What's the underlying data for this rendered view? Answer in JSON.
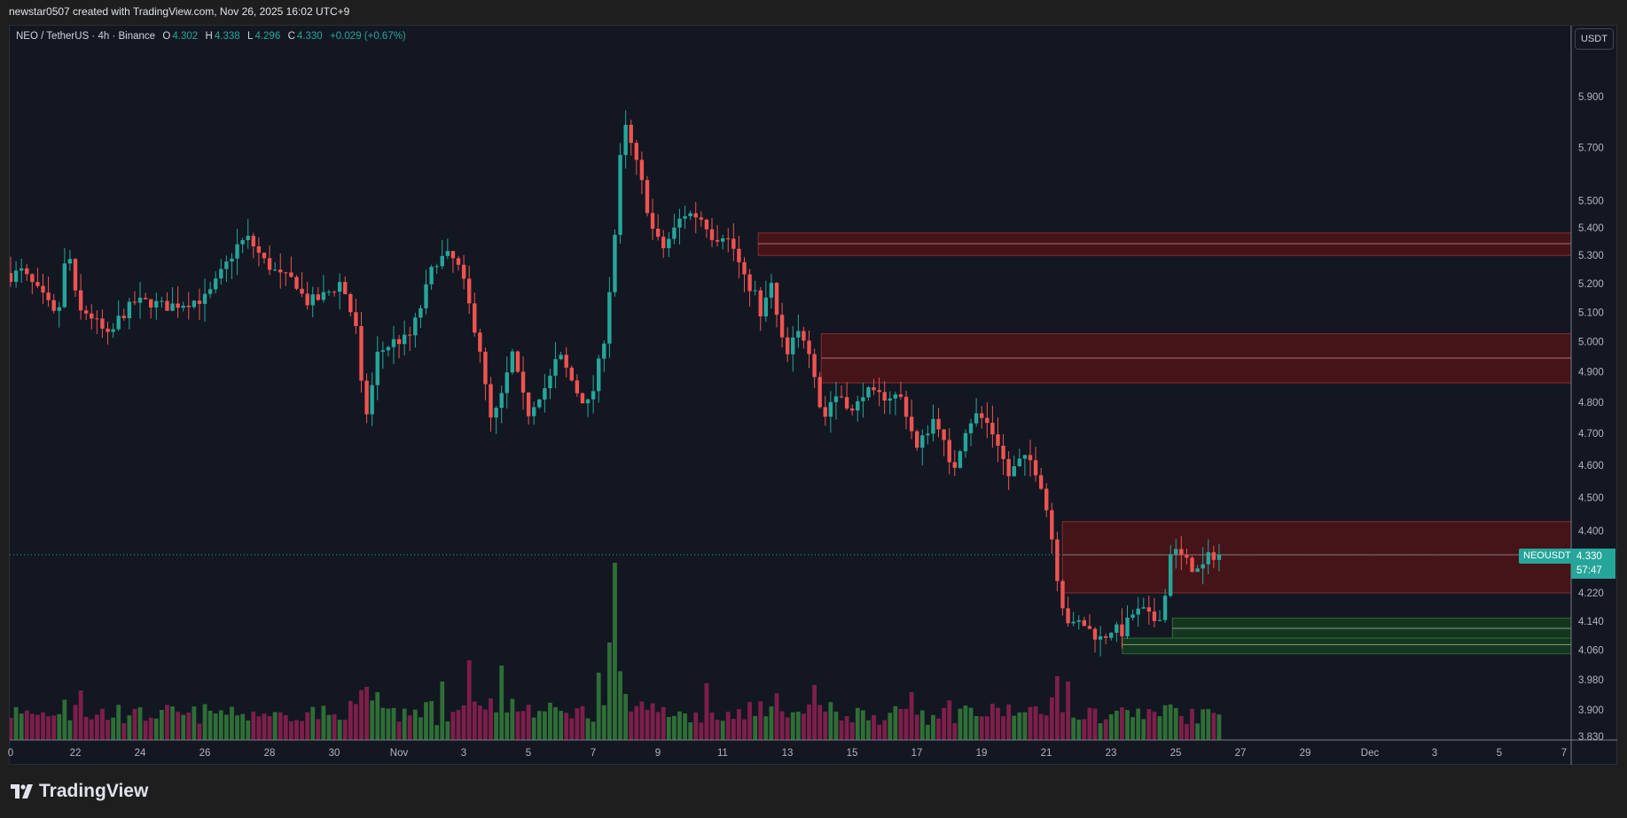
{
  "header": {
    "credit": "newstar0507 created with TradingView.com, Nov 26, 2025 16:02 UTC+9"
  },
  "legend": {
    "symbol": "NEO / TetherUS · 4h · Binance",
    "o_label": "O",
    "o": "4.302",
    "h_label": "H",
    "h": "4.338",
    "l_label": "L",
    "l": "4.296",
    "c_label": "C",
    "c": "4.330",
    "change": "+0.029 (+0.67%)"
  },
  "currency_button": "USDT",
  "price_tag": {
    "symbol": "NEOUSDT",
    "price": "4.330",
    "countdown": "57:47"
  },
  "footer": {
    "brand": "TradingView"
  },
  "colors": {
    "up": "#26a69a",
    "down": "#ef5350",
    "vol_up": "#2f6e37",
    "vol_down": "#7d1f4a",
    "zone_red": "#4a1418",
    "zone_green": "#163a1e",
    "bg": "#131722"
  },
  "chart_data": {
    "type": "candlestick",
    "title": "NEO / TetherUS · 4h · Binance",
    "scale": "log",
    "ylim": [
      3.83,
      5.9
    ],
    "y_ticks": [
      "5.900",
      "5.700",
      "5.500",
      "5.400",
      "5.300",
      "5.200",
      "5.100",
      "5.000",
      "4.900",
      "4.800",
      "4.700",
      "4.600",
      "4.500",
      "4.400",
      "4.220",
      "4.140",
      "4.060",
      "3.980",
      "3.900",
      "3.830"
    ],
    "x_ticks": [
      {
        "label": "0",
        "day": 0
      },
      {
        "label": "22",
        "day": 2
      },
      {
        "label": "24",
        "day": 4
      },
      {
        "label": "26",
        "day": 6
      },
      {
        "label": "28",
        "day": 8
      },
      {
        "label": "30",
        "day": 10
      },
      {
        "label": "Nov",
        "day": 12
      },
      {
        "label": "3",
        "day": 14
      },
      {
        "label": "5",
        "day": 16
      },
      {
        "label": "7",
        "day": 18
      },
      {
        "label": "9",
        "day": 20
      },
      {
        "label": "11",
        "day": 22
      },
      {
        "label": "13",
        "day": 24
      },
      {
        "label": "15",
        "day": 26
      },
      {
        "label": "17",
        "day": 28
      },
      {
        "label": "19",
        "day": 30
      },
      {
        "label": "21",
        "day": 32
      },
      {
        "label": "23",
        "day": 34
      },
      {
        "label": "25",
        "day": 36
      },
      {
        "label": "27",
        "day": 38
      },
      {
        "label": "29",
        "day": 40
      },
      {
        "label": "Dec",
        "day": 42
      },
      {
        "label": "3",
        "day": 44
      },
      {
        "label": "5",
        "day": 46
      },
      {
        "label": "7",
        "day": 48
      }
    ],
    "x_unit": "days since Oct 20 2025",
    "candle_interval_days": 0.1667,
    "last_price": 4.33,
    "price_path": [
      [
        0,
        5.227
      ],
      [
        0.32,
        5.245
      ],
      [
        1.12,
        5.135
      ],
      [
        1.44,
        5.07
      ],
      [
        1.76,
        5.34
      ],
      [
        2.08,
        5.1
      ],
      [
        2.4,
        5.1
      ],
      [
        3.04,
        5.01
      ],
      [
        3.35,
        5.08
      ],
      [
        3.83,
        5.135
      ],
      [
        4.31,
        5.135
      ],
      [
        4.79,
        5.12
      ],
      [
        5.43,
        5.135
      ],
      [
        6.07,
        5.15
      ],
      [
        6.55,
        5.245
      ],
      [
        7.03,
        5.34
      ],
      [
        7.35,
        5.36
      ],
      [
        7.83,
        5.28
      ],
      [
        8.31,
        5.227
      ],
      [
        8.79,
        5.21
      ],
      [
        9.11,
        5.135
      ],
      [
        9.58,
        5.15
      ],
      [
        10.06,
        5.19
      ],
      [
        10.22,
        5.21
      ],
      [
        10.7,
        5.03
      ],
      [
        10.86,
        4.82
      ],
      [
        11.02,
        4.76
      ],
      [
        11.34,
        4.96
      ],
      [
        11.82,
        5.0
      ],
      [
        12.3,
        5.01
      ],
      [
        12.62,
        5.1
      ],
      [
        13.1,
        5.28
      ],
      [
        13.58,
        5.3
      ],
      [
        13.9,
        5.245
      ],
      [
        14.22,
        5.1
      ],
      [
        14.54,
        4.96
      ],
      [
        14.7,
        4.82
      ],
      [
        14.86,
        4.73
      ],
      [
        15.18,
        4.82
      ],
      [
        15.5,
        4.96
      ],
      [
        15.65,
        4.89
      ],
      [
        15.97,
        4.76
      ],
      [
        16.29,
        4.82
      ],
      [
        16.61,
        4.86
      ],
      [
        16.93,
        4.96
      ],
      [
        17.25,
        4.89
      ],
      [
        17.57,
        4.82
      ],
      [
        17.89,
        4.79
      ],
      [
        18.05,
        4.86
      ],
      [
        18.37,
        5.03
      ],
      [
        18.53,
        5.21
      ],
      [
        18.75,
        5.47
      ],
      [
        18.91,
        5.81
      ],
      [
        19.17,
        5.71
      ],
      [
        19.49,
        5.57
      ],
      [
        19.81,
        5.4
      ],
      [
        20.13,
        5.32
      ],
      [
        20.45,
        5.38
      ],
      [
        20.77,
        5.45
      ],
      [
        21.09,
        5.45
      ],
      [
        21.41,
        5.43
      ],
      [
        21.73,
        5.36
      ],
      [
        22.04,
        5.38
      ],
      [
        22.36,
        5.32
      ],
      [
        22.68,
        5.21
      ],
      [
        23.0,
        5.17
      ],
      [
        23.16,
        5.07
      ],
      [
        23.48,
        5.21
      ],
      [
        23.64,
        5.1
      ],
      [
        23.96,
        4.94
      ],
      [
        24.28,
        5.03
      ],
      [
        24.6,
        5.01
      ],
      [
        24.92,
        4.86
      ],
      [
        25.08,
        4.73
      ],
      [
        25.4,
        4.82
      ],
      [
        25.72,
        4.82
      ],
      [
        26.04,
        4.76
      ],
      [
        26.36,
        4.84
      ],
      [
        26.68,
        4.82
      ],
      [
        27.16,
        4.82
      ],
      [
        27.48,
        4.82
      ],
      [
        27.8,
        4.73
      ],
      [
        27.96,
        4.64
      ],
      [
        28.27,
        4.7
      ],
      [
        28.59,
        4.76
      ],
      [
        28.91,
        4.64
      ],
      [
        29.07,
        4.565
      ],
      [
        29.55,
        4.73
      ],
      [
        29.87,
        4.76
      ],
      [
        30.19,
        4.73
      ],
      [
        30.51,
        4.67
      ],
      [
        30.83,
        4.565
      ],
      [
        31.15,
        4.61
      ],
      [
        31.47,
        4.62
      ],
      [
        31.79,
        4.565
      ],
      [
        32.11,
        4.42
      ],
      [
        32.43,
        4.21
      ],
      [
        32.75,
        4.12
      ],
      [
        33.07,
        4.14
      ],
      [
        33.39,
        4.11
      ],
      [
        33.71,
        4.09
      ],
      [
        34.03,
        4.12
      ],
      [
        34.35,
        4.11
      ],
      [
        34.66,
        4.16
      ],
      [
        34.98,
        4.17
      ],
      [
        35.3,
        4.14
      ],
      [
        35.62,
        4.17
      ],
      [
        35.85,
        4.35
      ],
      [
        36.1,
        4.33
      ],
      [
        36.42,
        4.3
      ],
      [
        36.74,
        4.28
      ],
      [
        37.06,
        4.33
      ],
      [
        37.38,
        4.33
      ]
    ],
    "volume_spikes_relative": [
      [
        18.7,
        1.0
      ],
      [
        18.5,
        0.55
      ],
      [
        14.2,
        0.45
      ],
      [
        15.1,
        0.42
      ],
      [
        18.2,
        0.38
      ],
      [
        32.4,
        0.36
      ],
      [
        32.7,
        0.33
      ],
      [
        21.5,
        0.32
      ],
      [
        24.9,
        0.31
      ],
      [
        11.0,
        0.3
      ],
      [
        2.2,
        0.28
      ],
      [
        27.9,
        0.27
      ],
      [
        13.4,
        0.33
      ],
      [
        35.8,
        0.2
      ]
    ],
    "zones": [
      {
        "kind": "supply",
        "from_day": 23.1,
        "top": 5.381,
        "mid": 5.342,
        "bottom": 5.3
      },
      {
        "kind": "supply",
        "from_day": 25.05,
        "top": 5.027,
        "mid": 4.945,
        "bottom": 4.863
      },
      {
        "kind": "supply",
        "from_day": 32.5,
        "top": 4.428,
        "mid": 4.33,
        "bottom": 4.22
      },
      {
        "kind": "demand",
        "from_day": 35.9,
        "top": 4.149,
        "mid": 4.12,
        "bottom": 4.093
      },
      {
        "kind": "demand",
        "from_day": 34.35,
        "top": 4.093,
        "mid": 4.075,
        "bottom": 4.05
      }
    ]
  }
}
